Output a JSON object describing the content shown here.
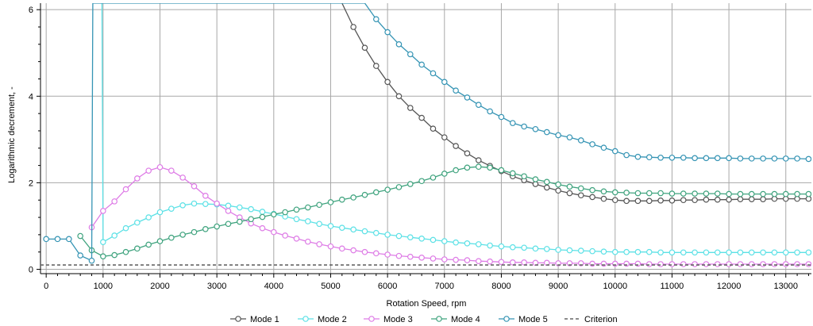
{
  "chart_data": {
    "type": "line",
    "title": "",
    "xlabel": "Rotation Speed, rpm",
    "ylabel": "Logarithmic decrement, -",
    "xlim": [
      -100,
      13450
    ],
    "ylim": [
      -0.1,
      6.15
    ],
    "x_ticks": [
      0,
      1000,
      2000,
      3000,
      4000,
      5000,
      6000,
      7000,
      8000,
      9000,
      10000,
      11000,
      12000,
      13000
    ],
    "x_tick_labels": [
      "0",
      "1000",
      "2000",
      "3000",
      "4000",
      "5000",
      "6000",
      "7000",
      "8000",
      "9000",
      "10000",
      "11000",
      "12000",
      "13000"
    ],
    "y_ticks": [
      0,
      2,
      4,
      6
    ],
    "y_tick_labels": [
      "0",
      "2",
      "4",
      "6"
    ],
    "grid": true,
    "legend_position": "bottom",
    "series": [
      {
        "name": "Mode 1",
        "color": "#555555",
        "points": [
          [
            5200,
            6.15
          ],
          [
            5400,
            5.6
          ],
          [
            5600,
            5.12
          ],
          [
            5800,
            4.7
          ],
          [
            6000,
            4.33
          ],
          [
            6200,
            4.0
          ],
          [
            6400,
            3.73
          ],
          [
            6600,
            3.5
          ],
          [
            6800,
            3.25
          ],
          [
            7000,
            3.05
          ],
          [
            7200,
            2.85
          ],
          [
            7400,
            2.68
          ],
          [
            7600,
            2.52
          ],
          [
            7800,
            2.39
          ],
          [
            8000,
            2.27
          ],
          [
            8200,
            2.15
          ],
          [
            8400,
            2.06
          ],
          [
            8600,
            1.97
          ],
          [
            8800,
            1.89
          ],
          [
            9000,
            1.82
          ],
          [
            9200,
            1.76
          ],
          [
            9400,
            1.71
          ],
          [
            9600,
            1.67
          ],
          [
            9800,
            1.63
          ],
          [
            10000,
            1.6
          ],
          [
            10200,
            1.58
          ],
          [
            10400,
            1.58
          ],
          [
            10600,
            1.58
          ],
          [
            10800,
            1.59
          ],
          [
            11000,
            1.59
          ],
          [
            11200,
            1.6
          ],
          [
            11400,
            1.6
          ],
          [
            11600,
            1.61
          ],
          [
            11800,
            1.61
          ],
          [
            12000,
            1.61
          ],
          [
            12200,
            1.62
          ],
          [
            12400,
            1.62
          ],
          [
            12600,
            1.62
          ],
          [
            12800,
            1.63
          ],
          [
            13000,
            1.63
          ],
          [
            13200,
            1.63
          ],
          [
            13400,
            1.63
          ]
        ]
      },
      {
        "name": "Mode 2",
        "color": "#5ce1e6",
        "points": [
          [
            980,
            6.15
          ],
          [
            1000,
            0.63
          ],
          [
            1200,
            0.78
          ],
          [
            1400,
            0.95
          ],
          [
            1600,
            1.08
          ],
          [
            1800,
            1.2
          ],
          [
            2000,
            1.32
          ],
          [
            2200,
            1.4
          ],
          [
            2400,
            1.48
          ],
          [
            2600,
            1.52
          ],
          [
            2800,
            1.51
          ],
          [
            3000,
            1.5
          ],
          [
            3200,
            1.47
          ],
          [
            3400,
            1.43
          ],
          [
            3600,
            1.39
          ],
          [
            3800,
            1.33
          ],
          [
            4000,
            1.28
          ],
          [
            4200,
            1.22
          ],
          [
            4400,
            1.16
          ],
          [
            4600,
            1.11
          ],
          [
            4800,
            1.05
          ],
          [
            5000,
            1.0
          ],
          [
            5200,
            0.96
          ],
          [
            5400,
            0.92
          ],
          [
            5600,
            0.88
          ],
          [
            5800,
            0.84
          ],
          [
            6000,
            0.8
          ],
          [
            6200,
            0.77
          ],
          [
            6400,
            0.74
          ],
          [
            6600,
            0.71
          ],
          [
            6800,
            0.68
          ],
          [
            7000,
            0.65
          ],
          [
            7200,
            0.62
          ],
          [
            7400,
            0.6
          ],
          [
            7600,
            0.58
          ],
          [
            7800,
            0.55
          ],
          [
            8000,
            0.53
          ],
          [
            8200,
            0.51
          ],
          [
            8400,
            0.5
          ],
          [
            8600,
            0.48
          ],
          [
            8800,
            0.47
          ],
          [
            9000,
            0.45
          ],
          [
            9200,
            0.44
          ],
          [
            9400,
            0.43
          ],
          [
            9600,
            0.42
          ],
          [
            9800,
            0.41
          ],
          [
            10000,
            0.4
          ],
          [
            10200,
            0.4
          ],
          [
            10400,
            0.4
          ],
          [
            10600,
            0.4
          ],
          [
            10800,
            0.39
          ],
          [
            11000,
            0.39
          ],
          [
            11200,
            0.39
          ],
          [
            11400,
            0.39
          ],
          [
            11600,
            0.39
          ],
          [
            11800,
            0.39
          ],
          [
            12000,
            0.39
          ],
          [
            12200,
            0.39
          ],
          [
            12400,
            0.39
          ],
          [
            12600,
            0.39
          ],
          [
            12800,
            0.39
          ],
          [
            13000,
            0.39
          ],
          [
            13200,
            0.39
          ],
          [
            13400,
            0.39
          ]
        ]
      },
      {
        "name": "Mode 3",
        "color": "#de7ce6",
        "points": [
          [
            800,
            0.97
          ],
          [
            1000,
            1.35
          ],
          [
            1200,
            1.57
          ],
          [
            1400,
            1.85
          ],
          [
            1600,
            2.1
          ],
          [
            1800,
            2.28
          ],
          [
            2000,
            2.36
          ],
          [
            2200,
            2.28
          ],
          [
            2400,
            2.12
          ],
          [
            2600,
            1.92
          ],
          [
            2800,
            1.7
          ],
          [
            3000,
            1.52
          ],
          [
            3200,
            1.35
          ],
          [
            3400,
            1.2
          ],
          [
            3600,
            1.06
          ],
          [
            3800,
            0.95
          ],
          [
            4000,
            0.86
          ],
          [
            4200,
            0.78
          ],
          [
            4400,
            0.71
          ],
          [
            4600,
            0.64
          ],
          [
            4800,
            0.58
          ],
          [
            5000,
            0.53
          ],
          [
            5200,
            0.48
          ],
          [
            5400,
            0.44
          ],
          [
            5600,
            0.4
          ],
          [
            5800,
            0.37
          ],
          [
            6000,
            0.34
          ],
          [
            6200,
            0.31
          ],
          [
            6400,
            0.29
          ],
          [
            6600,
            0.27
          ],
          [
            6800,
            0.25
          ],
          [
            7000,
            0.23
          ],
          [
            7200,
            0.22
          ],
          [
            7400,
            0.21
          ],
          [
            7600,
            0.19
          ],
          [
            7800,
            0.18
          ],
          [
            8000,
            0.17
          ],
          [
            8200,
            0.16
          ],
          [
            8400,
            0.16
          ],
          [
            8600,
            0.15
          ],
          [
            8800,
            0.15
          ],
          [
            9000,
            0.14
          ],
          [
            9200,
            0.14
          ],
          [
            9400,
            0.14
          ],
          [
            9600,
            0.13
          ],
          [
            9800,
            0.13
          ],
          [
            10000,
            0.13
          ],
          [
            10200,
            0.13
          ],
          [
            10400,
            0.13
          ],
          [
            10600,
            0.12
          ],
          [
            10800,
            0.12
          ],
          [
            11000,
            0.12
          ],
          [
            11200,
            0.12
          ],
          [
            11400,
            0.12
          ],
          [
            11600,
            0.12
          ],
          [
            11800,
            0.12
          ],
          [
            12000,
            0.12
          ],
          [
            12200,
            0.12
          ],
          [
            12400,
            0.12
          ],
          [
            12600,
            0.12
          ],
          [
            12800,
            0.12
          ],
          [
            13000,
            0.12
          ],
          [
            13200,
            0.12
          ],
          [
            13400,
            0.12
          ]
        ]
      },
      {
        "name": "Mode 4",
        "color": "#3fa37e",
        "points": [
          [
            600,
            0.77
          ],
          [
            800,
            0.44
          ],
          [
            1000,
            0.3
          ],
          [
            1200,
            0.33
          ],
          [
            1400,
            0.4
          ],
          [
            1600,
            0.48
          ],
          [
            1800,
            0.57
          ],
          [
            2000,
            0.65
          ],
          [
            2200,
            0.73
          ],
          [
            2400,
            0.8
          ],
          [
            2600,
            0.86
          ],
          [
            2800,
            0.93
          ],
          [
            3000,
            0.99
          ],
          [
            3200,
            1.05
          ],
          [
            3400,
            1.1
          ],
          [
            3600,
            1.16
          ],
          [
            3800,
            1.21
          ],
          [
            4000,
            1.27
          ],
          [
            4200,
            1.32
          ],
          [
            4400,
            1.38
          ],
          [
            4600,
            1.43
          ],
          [
            4800,
            1.49
          ],
          [
            5000,
            1.55
          ],
          [
            5200,
            1.61
          ],
          [
            5400,
            1.66
          ],
          [
            5600,
            1.72
          ],
          [
            5800,
            1.78
          ],
          [
            6000,
            1.84
          ],
          [
            6200,
            1.9
          ],
          [
            6400,
            1.97
          ],
          [
            6600,
            2.04
          ],
          [
            6800,
            2.12
          ],
          [
            7000,
            2.21
          ],
          [
            7200,
            2.29
          ],
          [
            7400,
            2.35
          ],
          [
            7600,
            2.37
          ],
          [
            7800,
            2.35
          ],
          [
            8000,
            2.29
          ],
          [
            8200,
            2.22
          ],
          [
            8400,
            2.15
          ],
          [
            8600,
            2.08
          ],
          [
            8800,
            2.02
          ],
          [
            9000,
            1.96
          ],
          [
            9200,
            1.91
          ],
          [
            9400,
            1.87
          ],
          [
            9600,
            1.83
          ],
          [
            9800,
            1.8
          ],
          [
            10000,
            1.78
          ],
          [
            10200,
            1.77
          ],
          [
            10400,
            1.76
          ],
          [
            10600,
            1.76
          ],
          [
            10800,
            1.76
          ],
          [
            11000,
            1.75
          ],
          [
            11200,
            1.75
          ],
          [
            11400,
            1.75
          ],
          [
            11600,
            1.75
          ],
          [
            11800,
            1.75
          ],
          [
            12000,
            1.74
          ],
          [
            12200,
            1.74
          ],
          [
            12400,
            1.74
          ],
          [
            12600,
            1.74
          ],
          [
            12800,
            1.74
          ],
          [
            13000,
            1.74
          ],
          [
            13200,
            1.74
          ],
          [
            13400,
            1.74
          ]
        ]
      },
      {
        "name": "Mode 5",
        "color": "#3594b4",
        "points": [
          [
            0,
            0.7
          ],
          [
            200,
            0.7
          ],
          [
            400,
            0.7
          ],
          [
            600,
            0.32
          ],
          [
            800,
            0.2
          ],
          [
            820,
            6.15
          ],
          [
            5600,
            6.15
          ],
          [
            5800,
            5.78
          ],
          [
            6000,
            5.48
          ],
          [
            6200,
            5.2
          ],
          [
            6400,
            4.97
          ],
          [
            6600,
            4.73
          ],
          [
            6800,
            4.53
          ],
          [
            7000,
            4.33
          ],
          [
            7200,
            4.13
          ],
          [
            7400,
            3.97
          ],
          [
            7600,
            3.8
          ],
          [
            7800,
            3.65
          ],
          [
            8000,
            3.52
          ],
          [
            8200,
            3.38
          ],
          [
            8400,
            3.3
          ],
          [
            8600,
            3.24
          ],
          [
            8800,
            3.17
          ],
          [
            9000,
            3.1
          ],
          [
            9200,
            3.05
          ],
          [
            9400,
            2.98
          ],
          [
            9600,
            2.89
          ],
          [
            9800,
            2.81
          ],
          [
            10000,
            2.73
          ],
          [
            10200,
            2.64
          ],
          [
            10400,
            2.6
          ],
          [
            10600,
            2.59
          ],
          [
            10800,
            2.58
          ],
          [
            11000,
            2.58
          ],
          [
            11200,
            2.58
          ],
          [
            11400,
            2.57
          ],
          [
            11600,
            2.57
          ],
          [
            11800,
            2.57
          ],
          [
            12000,
            2.57
          ],
          [
            12200,
            2.56
          ],
          [
            12400,
            2.56
          ],
          [
            12600,
            2.56
          ],
          [
            12800,
            2.56
          ],
          [
            13000,
            2.56
          ],
          [
            13200,
            2.56
          ],
          [
            13400,
            2.55
          ]
        ]
      },
      {
        "name": "Criterion",
        "color": "#666666",
        "dashed": true,
        "points": [
          [
            -100,
            0.1
          ],
          [
            13450,
            0.1
          ]
        ]
      }
    ]
  }
}
